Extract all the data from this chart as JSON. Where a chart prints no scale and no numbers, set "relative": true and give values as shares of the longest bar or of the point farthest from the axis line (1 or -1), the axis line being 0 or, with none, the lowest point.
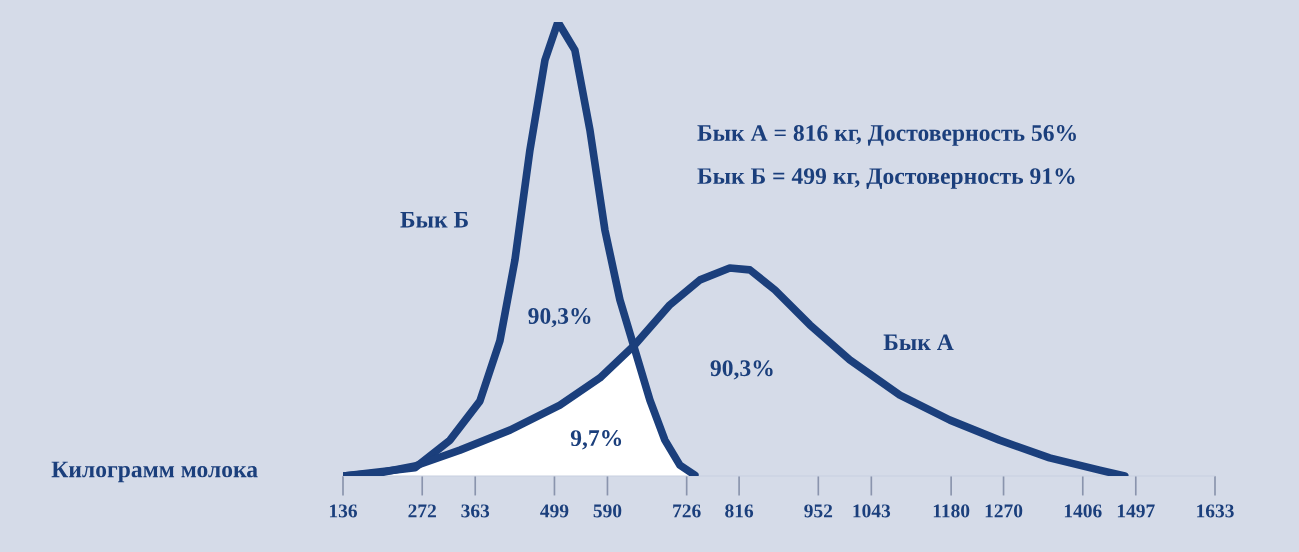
{
  "chart_data": {
    "type": "line",
    "relative": true,
    "xlabel": "Килограмм молока",
    "xlim": [
      136,
      1633
    ],
    "xticks": [
      136,
      272,
      363,
      499,
      590,
      726,
      816,
      952,
      1043,
      1180,
      1270,
      1406,
      1497,
      1633
    ],
    "grid": false,
    "legend": false,
    "marker": "none",
    "line_style": "solid",
    "series": [
      {
        "name": "Бык Б",
        "color": "#1b3f7c",
        "x": [
          136,
          259.6,
          319.6,
          371,
          405.4,
          431.2,
          456.9,
          482.7,
          505,
          534.1,
          559.9,
          585.6,
          611.4,
          637.1,
          662.9,
          688.6,
          714.3,
          740
        ],
        "values": [
          0,
          0.018,
          0.079,
          0.165,
          0.298,
          0.476,
          0.718,
          0.916,
          1,
          0.938,
          0.762,
          0.542,
          0.388,
          0.278,
          0.167,
          0.079,
          0.024,
          0.002
        ]
      },
      {
        "name": "Бык А",
        "color": "#1b3f7c",
        "x": [
          136,
          199.5,
          259.6,
          336.8,
          422.6,
          508.4,
          577,
          637.1,
          697.2,
          748.9,
          800,
          834.5,
          877.4,
          937.4,
          1006,
          1092,
          1178,
          1263,
          1349,
          1435,
          1478
        ],
        "values": [
          0,
          0.007,
          0.022,
          0.057,
          0.101,
          0.156,
          0.216,
          0.289,
          0.377,
          0.432,
          0.458,
          0.454,
          0.41,
          0.333,
          0.256,
          0.178,
          0.123,
          0.079,
          0.04,
          0.013,
          0
        ]
      }
    ],
    "annotations": [
      "Бык А = 816 кг, Достоверность 56%",
      "Бык Б = 499 кг, Достоверность 91%",
      "90,3%",
      "90,3%",
      "9,7%"
    ]
  }
}
